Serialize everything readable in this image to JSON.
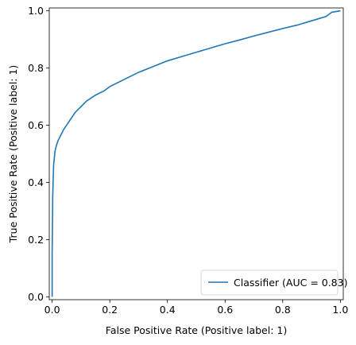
{
  "chart_data": {
    "type": "line",
    "title": "",
    "xlabel": "False Positive Rate (Positive label: 1)",
    "ylabel": "True Positive Rate (Positive label: 1)",
    "xlim": [
      -0.01,
      1.01
    ],
    "ylim": [
      -0.01,
      1.01
    ],
    "grid": false,
    "legend_position": "lower-right",
    "x_ticks": [
      0.0,
      0.2,
      0.4,
      0.6,
      0.8,
      1.0
    ],
    "x_tick_labels": [
      "0.0",
      "0.2",
      "0.4",
      "0.6",
      "0.8",
      "1.0"
    ],
    "y_ticks": [
      0.0,
      0.2,
      0.4,
      0.6,
      0.8,
      1.0
    ],
    "y_tick_labels": [
      "0.0",
      "0.2",
      "0.4",
      "0.6",
      "0.8",
      "1.0"
    ],
    "series": [
      {
        "name": "Classifier (AUC = 0.83)",
        "color": "#1f77b4",
        "x": [
          0.0,
          0.0,
          0.002,
          0.005,
          0.01,
          0.015,
          0.02,
          0.03,
          0.04,
          0.05,
          0.06,
          0.08,
          0.1,
          0.12,
          0.15,
          0.18,
          0.2,
          0.25,
          0.3,
          0.35,
          0.4,
          0.45,
          0.5,
          0.55,
          0.6,
          0.65,
          0.7,
          0.75,
          0.8,
          0.85,
          0.9,
          0.95,
          0.97,
          1.0
        ],
        "y": [
          0.0,
          0.15,
          0.35,
          0.46,
          0.51,
          0.53,
          0.545,
          0.565,
          0.585,
          0.6,
          0.615,
          0.645,
          0.665,
          0.685,
          0.705,
          0.72,
          0.735,
          0.76,
          0.785,
          0.805,
          0.825,
          0.84,
          0.855,
          0.87,
          0.885,
          0.898,
          0.912,
          0.925,
          0.938,
          0.95,
          0.965,
          0.98,
          0.995,
          1.0
        ]
      }
    ]
  }
}
